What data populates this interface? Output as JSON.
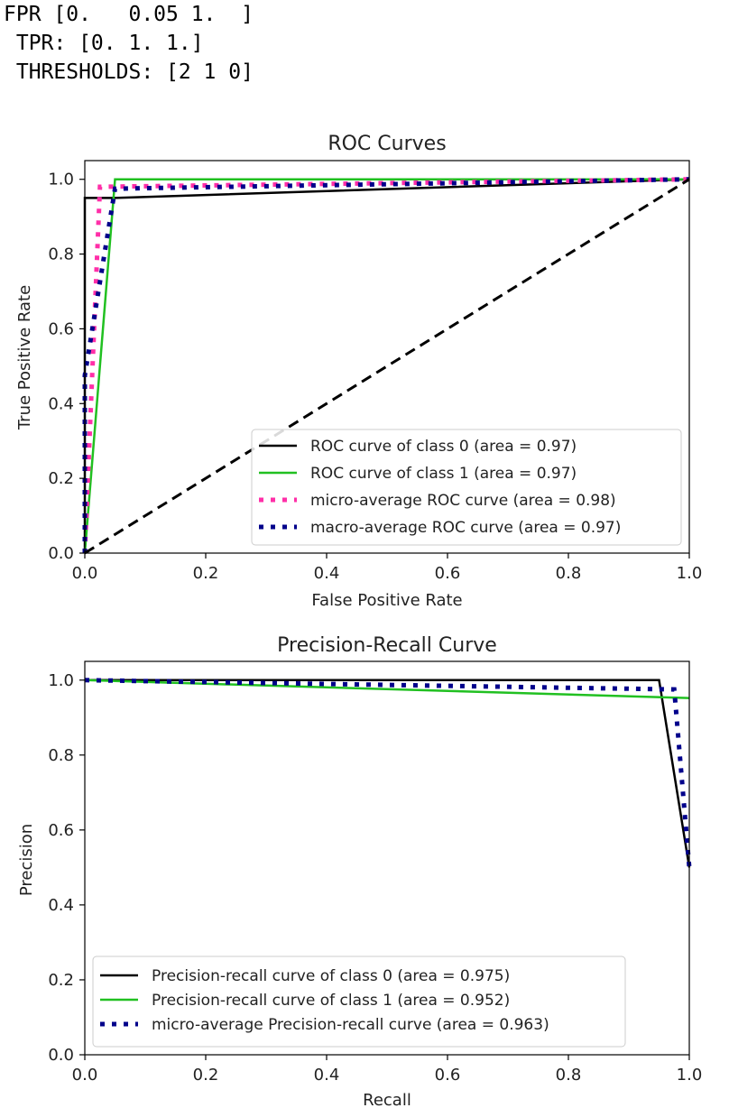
{
  "console_output": {
    "lines": [
      "FPR [0.   0.05 1.  ]",
      " TPR: [0. 1. 1.]",
      " THRESHOLDS: [2 1 0]"
    ]
  },
  "colors": {
    "class0": "#000000",
    "class1": "#21c021",
    "micro": "#ff2fa8",
    "macro": "#00008b",
    "diagonal": "#000000"
  },
  "chart_data": [
    {
      "type": "line",
      "title": "ROC Curves",
      "xlabel": "False Positive Rate",
      "ylabel": "True Positive Rate",
      "xlim": [
        0,
        1
      ],
      "ylim": [
        0,
        1.05
      ],
      "xticks": [
        0,
        0.2,
        0.4,
        0.6,
        0.8,
        1.0
      ],
      "xtick_labels": [
        "0.0",
        "0.2",
        "0.4",
        "0.6",
        "0.8",
        "1.0"
      ],
      "yticks": [
        0,
        0.2,
        0.4,
        0.6,
        0.8,
        1.0
      ],
      "ytick_labels": [
        "0.0",
        "0.2",
        "0.4",
        "0.6",
        "0.8",
        "1.0"
      ],
      "grid": false,
      "legend_position": "lower-right",
      "series": [
        {
          "name": "ROC curve of class 0 (area = 0.97)",
          "color_key": "class0",
          "style": "solid",
          "x": [
            0,
            0,
            0.05,
            1
          ],
          "y": [
            0,
            0.95,
            0.95,
            1.0
          ]
        },
        {
          "name": "ROC curve of class 1 (area = 0.97)",
          "color_key": "class1",
          "style": "solid",
          "x": [
            0,
            0.05,
            1
          ],
          "y": [
            0,
            1.0,
            1.0
          ]
        },
        {
          "name": "micro-average ROC curve (area = 0.98)",
          "color_key": "micro",
          "style": "dotted",
          "x": [
            0,
            0.025,
            1
          ],
          "y": [
            0,
            0.98,
            1.0
          ]
        },
        {
          "name": "macro-average ROC curve (area = 0.97)",
          "color_key": "macro",
          "style": "dotted",
          "x": [
            0,
            0,
            0.05,
            1
          ],
          "y": [
            0,
            0.475,
            0.975,
            1.0
          ]
        },
        {
          "name": "",
          "color_key": "diagonal",
          "style": "dashed",
          "legend": false,
          "x": [
            0,
            1
          ],
          "y": [
            0,
            1
          ]
        }
      ]
    },
    {
      "type": "line",
      "title": "Precision-Recall Curve",
      "xlabel": "Recall",
      "ylabel": "Precision",
      "xlim": [
        0,
        1
      ],
      "ylim": [
        0,
        1.05
      ],
      "xticks": [
        0,
        0.2,
        0.4,
        0.6,
        0.8,
        1.0
      ],
      "xtick_labels": [
        "0.0",
        "0.2",
        "0.4",
        "0.6",
        "0.8",
        "1.0"
      ],
      "yticks": [
        0,
        0.2,
        0.4,
        0.6,
        0.8,
        1.0
      ],
      "ytick_labels": [
        "0.0",
        "0.2",
        "0.4",
        "0.6",
        "0.8",
        "1.0"
      ],
      "grid": false,
      "legend_position": "lower-left",
      "series": [
        {
          "name": "Precision-recall curve of class 0 (area = 0.975)",
          "color_key": "class0",
          "style": "solid",
          "x": [
            0,
            0.95,
            1.0
          ],
          "y": [
            1.0,
            1.0,
            0.5
          ]
        },
        {
          "name": "Precision-recall curve of class 1 (area = 0.952)",
          "color_key": "class1",
          "style": "solid",
          "x": [
            0,
            1.0
          ],
          "y": [
            1.0,
            0.952
          ]
        },
        {
          "name": "micro-average Precision-recall curve (area = 0.963)",
          "color_key": "macro",
          "style": "dotted",
          "x": [
            0,
            0.975,
            1.0
          ],
          "y": [
            1.0,
            0.975,
            0.5
          ]
        }
      ]
    }
  ]
}
